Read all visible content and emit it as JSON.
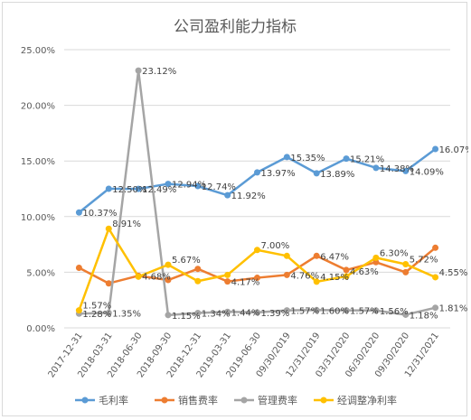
{
  "chart_data": {
    "type": "line",
    "title": "公司盈利能力指标",
    "categories": [
      "2017-12-31",
      "2018-03-31",
      "2018-06-30",
      "2018-09-30",
      "2018-12-31",
      "2019-03-31",
      "2019-06-30",
      "09/30/2019",
      "12/31/2019",
      "03/31/2020",
      "06/30/2020",
      "09/30/2020",
      "12/31/2021"
    ],
    "y_ticks": [
      "0.00%",
      "5.00%",
      "10.00%",
      "15.00%",
      "20.00%",
      "25.00%"
    ],
    "ylim": [
      0,
      25
    ],
    "grid": true,
    "legend_position": "bottom",
    "series": [
      {
        "name": "毛利率",
        "color": "#5b9bd5",
        "values": [
          10.37,
          12.5,
          12.49,
          12.94,
          12.74,
          11.92,
          13.97,
          15.35,
          13.89,
          15.21,
          14.38,
          14.09,
          16.07
        ],
        "labels": [
          "10.37%",
          "12.50%",
          "12.49%",
          "12.94%",
          "12.74%",
          "11.92%",
          "13.97%",
          "15.35%",
          "13.89%",
          "15.21%",
          "14.38%",
          "14.09%",
          "16.07%"
        ]
      },
      {
        "name": "销售费率",
        "color": "#ed7d31",
        "values": [
          5.4,
          4.0,
          4.68,
          4.3,
          5.3,
          4.17,
          4.5,
          4.76,
          6.47,
          5.2,
          5.9,
          5.0,
          7.2
        ],
        "labels": [
          "",
          "",
          "4.68%",
          "",
          "",
          "4.17%",
          "",
          "4.76%",
          "6.47%",
          "",
          "",
          "",
          ""
        ]
      },
      {
        "name": "管理费率",
        "color": "#a5a5a5",
        "values": [
          1.28,
          1.35,
          23.12,
          1.15,
          1.34,
          1.44,
          1.39,
          1.57,
          1.6,
          1.57,
          1.56,
          1.18,
          1.81
        ],
        "labels": [
          "1.28%",
          "1.35%",
          "23.12%",
          "1.15%",
          "1.34%",
          "1.44%",
          "1.39%",
          "1.57%",
          "1.60%",
          "1.57%",
          "1.56%",
          "1.18%",
          "1.81%"
        ]
      },
      {
        "name": "经调整净利率",
        "color": "#ffc000",
        "values": [
          1.57,
          8.91,
          4.6,
          5.67,
          4.2,
          4.76,
          7.0,
          6.47,
          4.15,
          4.63,
          6.3,
          5.72,
          4.55
        ],
        "labels": [
          "1.57%",
          "8.91%",
          "",
          "5.67%",
          "",
          "",
          "7.00%",
          "",
          "4.15%",
          "4.63%",
          "6.30%",
          "5.72%",
          "4.55%"
        ]
      }
    ]
  }
}
